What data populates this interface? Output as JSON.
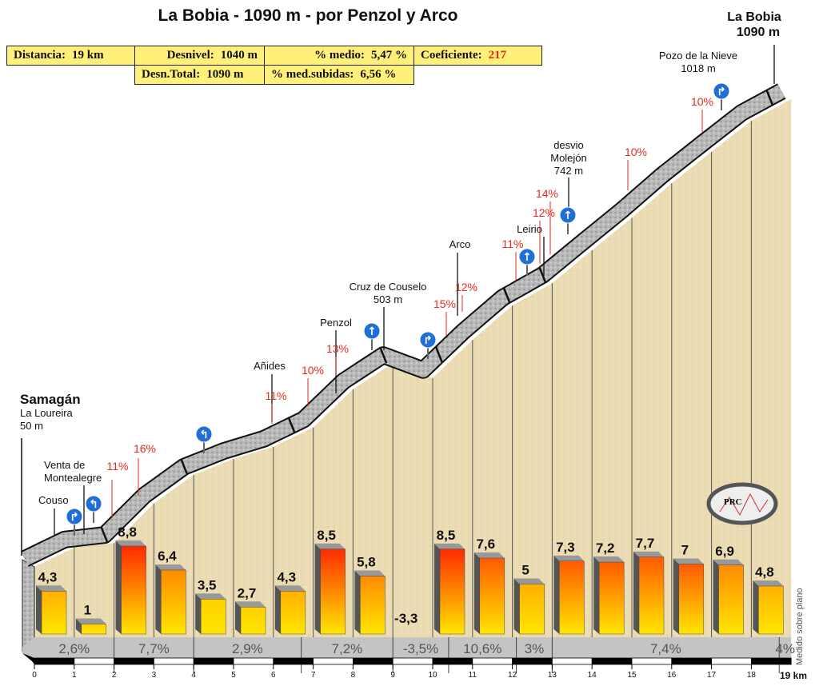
{
  "title": "La Bobia - 1090 m - por Penzol y Arco",
  "stats": {
    "distancia_label": "Distancia:",
    "distancia": "19 km",
    "desnivel_label": "Desnivel:",
    "desnivel": "1040 m",
    "medio_label": "% medio:",
    "medio": "5,47 %",
    "coef_label": "Coeficiente:",
    "coef": "217",
    "total_label": "Desn.Total:",
    "total": "1090 m",
    "subidas_label": "% med.subidas:",
    "subidas": "6,56 %"
  },
  "side_note": "Medido sobre plano",
  "end_label": "19 km",
  "logo_text": "PRC",
  "chart_data": {
    "type": "bar",
    "title": "La Bobia - 1090 m - por Penzol y Arco",
    "xlabel": "km",
    "xlim": [
      0,
      19
    ],
    "x_ticks": [
      "0",
      "1",
      "2",
      "3",
      "4",
      "5",
      "6",
      "7",
      "8",
      "9",
      "10",
      "11",
      "12",
      "13",
      "14",
      "15",
      "16",
      "17",
      "18"
    ],
    "km_gradients": [
      4.3,
      1,
      8.8,
      6.4,
      3.5,
      2.7,
      4.3,
      8.5,
      5.8,
      -3.3,
      8.5,
      7.6,
      5,
      7.3,
      7.2,
      7.7,
      7,
      6.9,
      4.8
    ],
    "km_gradient_labels": [
      "4,3",
      "1",
      "8,8",
      "6,4",
      "3,5",
      "2,7",
      "4,3",
      "8,5",
      "5,8",
      "-3,3",
      "8,5",
      "7,6",
      "5",
      "7,3",
      "7,2",
      "7,7",
      "7",
      "6,9",
      "4,8"
    ],
    "elevations_m": [
      50,
      93,
      103,
      191,
      255,
      290,
      317,
      360,
      445,
      503,
      470,
      555,
      631,
      681,
      754,
      826,
      903,
      973,
      1042,
      1090
    ],
    "sections": [
      {
        "from": 0,
        "to": 2,
        "label": "2,6%"
      },
      {
        "from": 2,
        "to": 4,
        "label": "7,7%"
      },
      {
        "from": 4,
        "to": 6.7,
        "label": "2,9%"
      },
      {
        "from": 6.7,
        "to": 9,
        "label": "7,2%"
      },
      {
        "from": 9,
        "to": 10.4,
        "label": "-3,5%"
      },
      {
        "from": 10.4,
        "to": 12.1,
        "label": "10,6%"
      },
      {
        "from": 12.1,
        "to": 13,
        "label": "3%"
      },
      {
        "from": 13,
        "to": 18.7,
        "label": "7,4%"
      },
      {
        "from": 18.7,
        "to": 19,
        "label": "4%"
      }
    ],
    "places": [
      {
        "km": 0,
        "lines": [
          "Samagán",
          "La Loureira",
          "50 m"
        ]
      },
      {
        "km": 0.5,
        "lines": [
          "Couso"
        ]
      },
      {
        "km": 1.2,
        "lines": [
          "Venta de",
          "Montealegre"
        ]
      },
      {
        "km": 6,
        "lines": [
          "Añides"
        ]
      },
      {
        "km": 7.5,
        "lines": [
          "Penzol"
        ]
      },
      {
        "km": 8.9,
        "lines": [
          "Cruz de Couselo",
          "503 m"
        ]
      },
      {
        "km": 10.6,
        "lines": [
          "Arco"
        ]
      },
      {
        "km": 12.9,
        "lines": [
          "Leirio"
        ]
      },
      {
        "km": 13.4,
        "lines": [
          "desvio",
          "Molejón",
          "742 m"
        ]
      },
      {
        "km": 17.3,
        "lines": [
          "Pozo de la Nieve",
          "1018 m"
        ]
      },
      {
        "km": 19,
        "lines": [
          "La Bobia",
          "1090 m"
        ]
      }
    ],
    "peak_gradients": [
      {
        "km": 2,
        "label": "11%"
      },
      {
        "km": 2.6,
        "label": "16%"
      },
      {
        "km": 6,
        "label": "11%"
      },
      {
        "km": 6.9,
        "label": "10%"
      },
      {
        "km": 7.4,
        "label": "13%"
      },
      {
        "km": 10.1,
        "label": "15%"
      },
      {
        "km": 10.8,
        "label": "12%"
      },
      {
        "km": 12.5,
        "label": "11%"
      },
      {
        "km": 12.8,
        "label": "12%"
      },
      {
        "km": 13,
        "label": "14%"
      },
      {
        "km": 15,
        "label": "10%"
      },
      {
        "km": 16.7,
        "label": "10%"
      }
    ],
    "turn_signs": [
      {
        "km": 1,
        "type": "turn-right"
      },
      {
        "km": 1.5,
        "type": "turn-left"
      },
      {
        "km": 4.2,
        "type": "turn-left"
      },
      {
        "km": 8.5,
        "type": "straight"
      },
      {
        "km": 9.9,
        "type": "turn-right"
      },
      {
        "km": 12.6,
        "type": "straight"
      },
      {
        "km": 13.5,
        "type": "straight"
      },
      {
        "km": 17.3,
        "type": "turn-right"
      }
    ]
  }
}
